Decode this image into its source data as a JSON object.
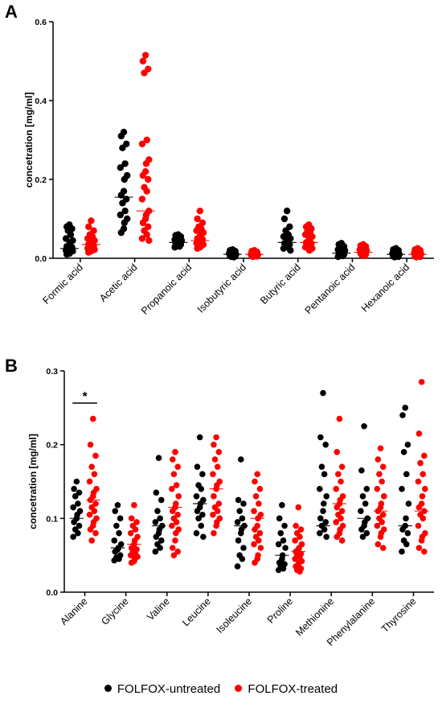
{
  "legend": {
    "untreated": "FOLFOX-untreated",
    "treated": "FOLFOX-treated"
  },
  "colors": {
    "untreated": "#000000",
    "treated": "#ff0000"
  },
  "chart_data": [
    {
      "panel": "A",
      "type": "scatter",
      "ylabel": "concetration [mg/ml]",
      "ylim": [
        0,
        0.6
      ],
      "yticks": [
        "0.0",
        "0.2",
        "0.4",
        "0.6"
      ],
      "categories": [
        "Formic acid",
        "Acetic acid",
        "Propanoic acid",
        "Isobutyric acid",
        "Butyric acid",
        "Pentanoic acid",
        "Hexanoic acid"
      ],
      "series": [
        {
          "name": "FOLFOX-untreated",
          "group": "untreated",
          "values": [
            [
              0.085,
              0.08,
              0.075,
              0.07,
              0.06,
              0.05,
              0.045,
              0.04,
              0.035,
              0.03,
              0.028,
              0.025,
              0.022,
              0.02,
              0.018,
              0.015,
              0.012,
              0.01
            ],
            [
              0.32,
              0.31,
              0.29,
              0.28,
              0.24,
              0.23,
              0.21,
              0.2,
              0.17,
              0.16,
              0.15,
              0.14,
              0.12,
              0.11,
              0.1,
              0.09,
              0.075,
              0.065
            ],
            [
              0.06,
              0.058,
              0.055,
              0.052,
              0.05,
              0.047,
              0.045,
              0.042,
              0.04,
              0.038,
              0.035,
              0.033,
              0.03,
              0.028
            ],
            [
              0.022,
              0.02,
              0.018,
              0.016,
              0.014,
              0.012,
              0.01,
              0.009,
              0.008,
              0.006,
              0.005,
              0.004,
              0.003
            ],
            [
              0.12,
              0.1,
              0.08,
              0.07,
              0.06,
              0.055,
              0.05,
              0.045,
              0.04,
              0.038,
              0.035,
              0.03,
              0.028,
              0.025,
              0.02
            ],
            [
              0.038,
              0.035,
              0.03,
              0.028,
              0.025,
              0.022,
              0.02,
              0.018,
              0.015,
              0.013,
              0.01,
              0.008,
              0.006,
              0.004
            ],
            [
              0.025,
              0.022,
              0.02,
              0.018,
              0.015,
              0.012,
              0.01,
              0.008,
              0.006,
              0.005,
              0.004,
              0.003
            ]
          ]
        },
        {
          "name": "FOLFOX-treated",
          "group": "treated",
          "values": [
            [
              0.095,
              0.08,
              0.07,
              0.06,
              0.055,
              0.05,
              0.045,
              0.04,
              0.038,
              0.035,
              0.032,
              0.03,
              0.028,
              0.025,
              0.022,
              0.02,
              0.018,
              0.015
            ],
            [
              0.515,
              0.5,
              0.48,
              0.47,
              0.3,
              0.29,
              0.25,
              0.24,
              0.22,
              0.21,
              0.2,
              0.18,
              0.17,
              0.15,
              0.12,
              0.11,
              0.1,
              0.09,
              0.08,
              0.07,
              0.06,
              0.05,
              0.045
            ],
            [
              0.12,
              0.1,
              0.09,
              0.08,
              0.075,
              0.07,
              0.065,
              0.06,
              0.055,
              0.05,
              0.048,
              0.045,
              0.04,
              0.038,
              0.035,
              0.03,
              0.028,
              0.025
            ],
            [
              0.02,
              0.018,
              0.016,
              0.014,
              0.012,
              0.01,
              0.009,
              0.008,
              0.007,
              0.006,
              0.005,
              0.004
            ],
            [
              0.085,
              0.08,
              0.075,
              0.07,
              0.065,
              0.06,
              0.055,
              0.05,
              0.045,
              0.04,
              0.038,
              0.035,
              0.03,
              0.028,
              0.025,
              0.02
            ],
            [
              0.035,
              0.032,
              0.03,
              0.028,
              0.025,
              0.022,
              0.02,
              0.018,
              0.015,
              0.012,
              0.01,
              0.008,
              0.006
            ],
            [
              0.025,
              0.022,
              0.02,
              0.018,
              0.015,
              0.013,
              0.011,
              0.009,
              0.007,
              0.005,
              0.004,
              0.003
            ]
          ]
        }
      ],
      "medians": {
        "untreated": [
          0.025,
          0.155,
          0.04,
          0.01,
          0.04,
          0.013,
          0.01
        ],
        "treated": [
          0.035,
          0.12,
          0.045,
          0.01,
          0.04,
          0.015,
          0.01
        ]
      }
    },
    {
      "panel": "B",
      "type": "scatter",
      "ylabel": "concetration [mg/ml]",
      "ylim": [
        0,
        0.3
      ],
      "yticks": [
        "0.0",
        "0.1",
        "0.2",
        "0.3"
      ],
      "categories": [
        "Alanine",
        "Glycine",
        "Valine",
        "Leucine",
        "Isoleucine",
        "Proline",
        "Methionine",
        "Phenylalanine",
        "Thyrosine"
      ],
      "series": [
        {
          "name": "FOLFOX-untreated",
          "group": "untreated",
          "values": [
            [
              0.15,
              0.14,
              0.135,
              0.13,
              0.12,
              0.115,
              0.11,
              0.105,
              0.1,
              0.095,
              0.09,
              0.085,
              0.08,
              0.075
            ],
            [
              0.118,
              0.11,
              0.1,
              0.09,
              0.08,
              0.07,
              0.065,
              0.06,
              0.058,
              0.055,
              0.05,
              0.047,
              0.045,
              0.043
            ],
            [
              0.182,
              0.135,
              0.125,
              0.11,
              0.1,
              0.095,
              0.09,
              0.085,
              0.08,
              0.075,
              0.07,
              0.065,
              0.06,
              0.055
            ],
            [
              0.21,
              0.17,
              0.16,
              0.145,
              0.14,
              0.13,
              0.125,
              0.12,
              0.115,
              0.11,
              0.105,
              0.1,
              0.09,
              0.08,
              0.075
            ],
            [
              0.18,
              0.125,
              0.12,
              0.11,
              0.1,
              0.095,
              0.09,
              0.085,
              0.08,
              0.07,
              0.06,
              0.05,
              0.045,
              0.035
            ],
            [
              0.118,
              0.1,
              0.09,
              0.08,
              0.07,
              0.065,
              0.06,
              0.05,
              0.045,
              0.04,
              0.038,
              0.035,
              0.032,
              0.03
            ],
            [
              0.27,
              0.21,
              0.2,
              0.17,
              0.16,
              0.14,
              0.13,
              0.12,
              0.11,
              0.1,
              0.095,
              0.09,
              0.085,
              0.08,
              0.075
            ],
            [
              0.225,
              0.165,
              0.14,
              0.13,
              0.12,
              0.11,
              0.1,
              0.095,
              0.09,
              0.085,
              0.08,
              0.075
            ],
            [
              0.25,
              0.24,
              0.2,
              0.19,
              0.16,
              0.14,
              0.12,
              0.1,
              0.09,
              0.085,
              0.08,
              0.07,
              0.065,
              0.055
            ]
          ]
        },
        {
          "name": "FOLFOX-treated",
          "group": "treated",
          "values": [
            [
              0.235,
              0.2,
              0.185,
              0.17,
              0.16,
              0.15,
              0.14,
              0.135,
              0.13,
              0.125,
              0.12,
              0.115,
              0.11,
              0.105,
              0.1,
              0.095,
              0.09,
              0.085,
              0.08,
              0.07
            ],
            [
              0.118,
              0.1,
              0.095,
              0.09,
              0.085,
              0.08,
              0.075,
              0.07,
              0.065,
              0.06,
              0.058,
              0.055,
              0.052,
              0.05,
              0.048,
              0.045,
              0.042,
              0.04
            ],
            [
              0.19,
              0.18,
              0.17,
              0.16,
              0.145,
              0.14,
              0.13,
              0.12,
              0.115,
              0.11,
              0.105,
              0.1,
              0.095,
              0.09,
              0.085,
              0.08,
              0.07,
              0.06,
              0.055,
              0.05
            ],
            [
              0.21,
              0.2,
              0.19,
              0.18,
              0.17,
              0.16,
              0.15,
              0.145,
              0.14,
              0.13,
              0.12,
              0.115,
              0.11,
              0.105,
              0.1,
              0.095,
              0.09,
              0.08
            ],
            [
              0.16,
              0.15,
              0.14,
              0.13,
              0.12,
              0.11,
              0.105,
              0.1,
              0.09,
              0.085,
              0.08,
              0.075,
              0.07,
              0.065,
              0.06,
              0.05,
              0.045,
              0.04
            ],
            [
              0.115,
              0.09,
              0.085,
              0.08,
              0.075,
              0.07,
              0.065,
              0.06,
              0.058,
              0.055,
              0.052,
              0.05,
              0.048,
              0.045,
              0.042,
              0.04,
              0.038,
              0.035,
              0.032,
              0.03,
              0.028
            ],
            [
              0.235,
              0.19,
              0.17,
              0.16,
              0.15,
              0.14,
              0.13,
              0.125,
              0.12,
              0.115,
              0.11,
              0.105,
              0.1,
              0.095,
              0.09,
              0.085,
              0.08,
              0.075,
              0.07
            ],
            [
              0.195,
              0.18,
              0.17,
              0.16,
              0.15,
              0.14,
              0.13,
              0.12,
              0.115,
              0.11,
              0.105,
              0.1,
              0.095,
              0.09,
              0.085,
              0.08,
              0.075,
              0.065,
              0.06
            ],
            [
              0.285,
              0.215,
              0.185,
              0.175,
              0.16,
              0.15,
              0.14,
              0.13,
              0.12,
              0.115,
              0.11,
              0.105,
              0.1,
              0.09,
              0.08,
              0.075,
              0.07,
              0.06,
              0.055
            ]
          ]
        }
      ],
      "medians": {
        "untreated": [
          0.1,
          0.06,
          0.09,
          0.12,
          0.09,
          0.05,
          0.09,
          0.1,
          0.09
        ],
        "treated": [
          0.125,
          0.065,
          0.115,
          0.14,
          0.1,
          0.055,
          0.12,
          0.11,
          0.11
        ]
      },
      "annotations": [
        {
          "text": "*",
          "category": "Alanine",
          "between": [
            "FOLFOX-untreated",
            "FOLFOX-treated"
          ]
        }
      ]
    }
  ]
}
